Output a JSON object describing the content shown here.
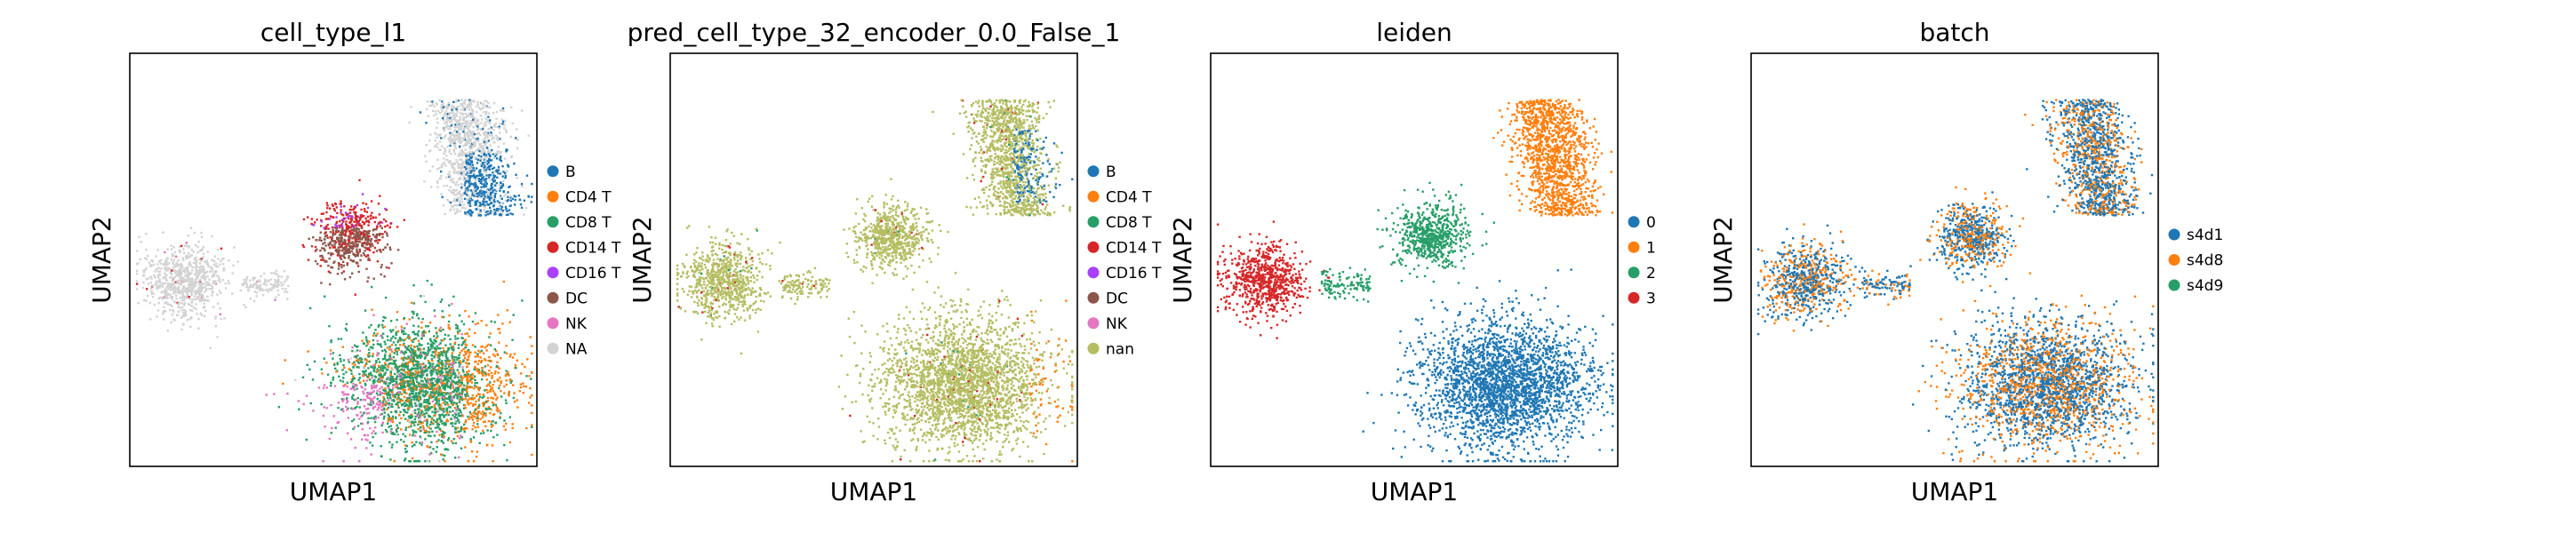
{
  "chart_data": [
    {
      "type": "scatter",
      "title": "cell_type_l1",
      "xlabel": "UMAP1",
      "ylabel": "UMAP2",
      "ticks": false,
      "legend_placement": "right",
      "legend": [
        {
          "label": "B",
          "color": "#1f77b4"
        },
        {
          "label": "CD4 T",
          "color": "#ff7f0e"
        },
        {
          "label": "CD8 T",
          "color": "#279e68"
        },
        {
          "label": "CD14 T",
          "color": "#d62728"
        },
        {
          "label": "CD16 T",
          "color": "#aa40fc"
        },
        {
          "label": "DC",
          "color": "#8c564b"
        },
        {
          "label": "NK",
          "color": "#e377c2"
        },
        {
          "label": "NA",
          "color": "#d3d3d3"
        }
      ]
    },
    {
      "type": "scatter",
      "title": "pred_cell_type_32_encoder_0.0_False_1",
      "xlabel": "UMAP1",
      "ylabel": "UMAP2",
      "ticks": false,
      "legend_placement": "right",
      "legend": [
        {
          "label": "B",
          "color": "#1f77b4"
        },
        {
          "label": "CD4 T",
          "color": "#ff7f0e"
        },
        {
          "label": "CD8 T",
          "color": "#279e68"
        },
        {
          "label": "CD14 T",
          "color": "#d62728"
        },
        {
          "label": "CD16 T",
          "color": "#aa40fc"
        },
        {
          "label": "DC",
          "color": "#8c564b"
        },
        {
          "label": "NK",
          "color": "#e377c2"
        },
        {
          "label": "nan",
          "color": "#b5bd61"
        }
      ]
    },
    {
      "type": "scatter",
      "title": "leiden",
      "xlabel": "UMAP1",
      "ylabel": "UMAP2",
      "ticks": false,
      "legend_placement": "right",
      "legend": [
        {
          "label": "0",
          "color": "#1f77b4"
        },
        {
          "label": "1",
          "color": "#ff7f0e"
        },
        {
          "label": "2",
          "color": "#279e68"
        },
        {
          "label": "3",
          "color": "#d62728"
        }
      ]
    },
    {
      "type": "scatter",
      "title": "batch",
      "xlabel": "UMAP1",
      "ylabel": "UMAP2",
      "ticks": false,
      "legend_placement": "right",
      "legend": [
        {
          "label": "s4d1",
          "color": "#1f77b4"
        },
        {
          "label": "s4d8",
          "color": "#ff7f0e"
        },
        {
          "label": "s4d9",
          "color": "#279e68"
        }
      ]
    }
  ]
}
